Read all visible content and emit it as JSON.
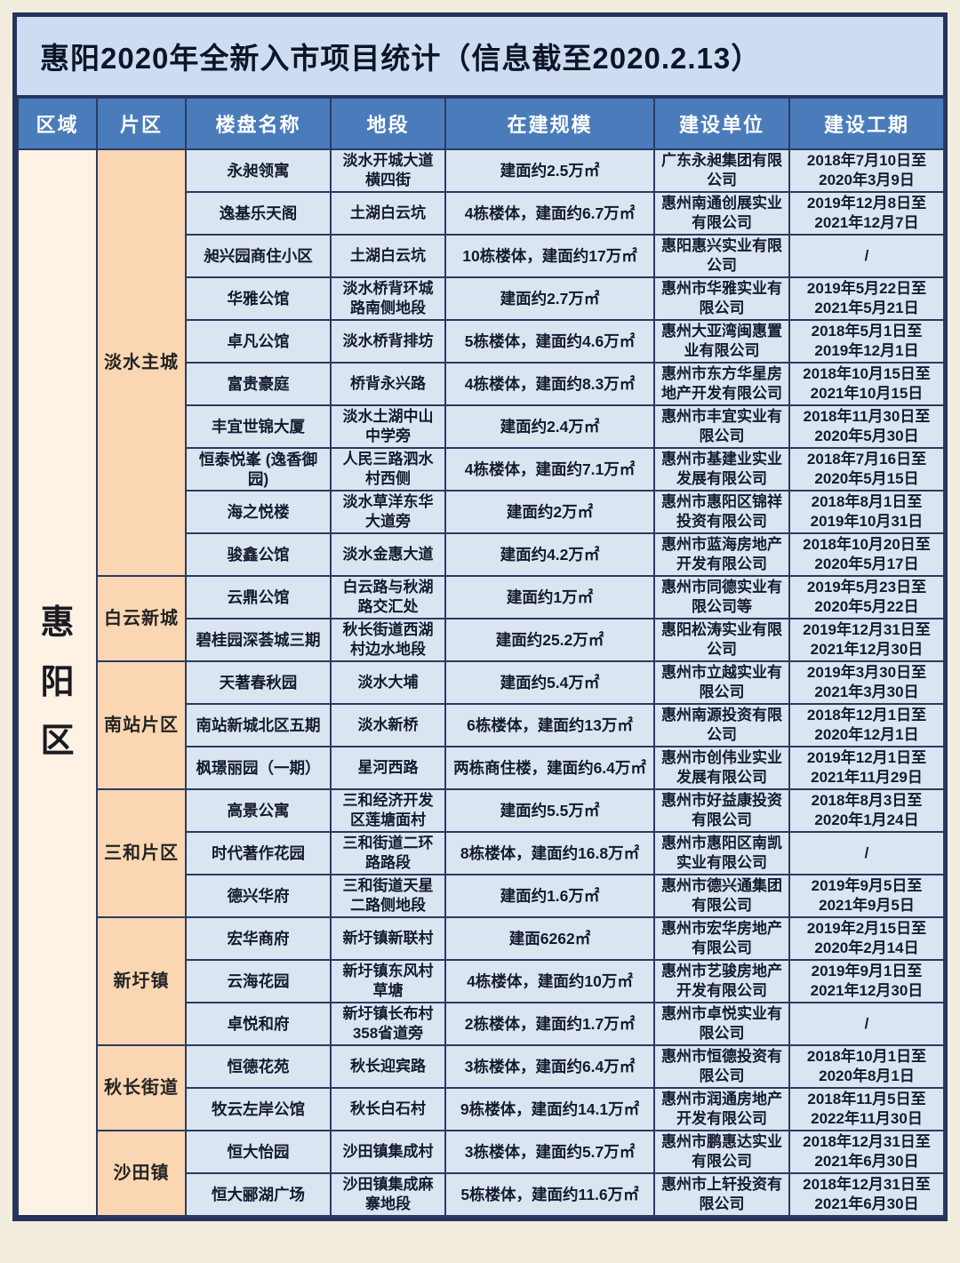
{
  "title": "惠阳2020年全新入市项目统计（信息截至2020.2.13）",
  "colors": {
    "page_background": "#f2eddc",
    "frame_border": "#25335f",
    "title_bar_background": "#cddcf0",
    "title_text": "#0d1528",
    "header_background": "#4a7cbb",
    "header_text": "#ffffff",
    "cell_background": "#dbe5f1",
    "region_column_background": "#fdf2e3",
    "district_column_background": "#fad7b2",
    "body_text": "#141a30"
  },
  "table": {
    "headers": [
      "区域",
      "片区",
      "楼盘名称",
      "地段",
      "在建规模",
      "建设单位",
      "建设工期"
    ],
    "region": "惠阳区",
    "groups": [
      {
        "name": "淡水主城",
        "rows": [
          {
            "name": "永昶领寓",
            "location": "淡水开城大道横四街",
            "scale": "建面约2.5万㎡",
            "company": "广东永昶集团有限公司",
            "period": "2018年7月10日至2020年3月9日"
          },
          {
            "name": "逸基乐天阁",
            "location": "土湖白云坑",
            "scale": "4栋楼体，建面约6.7万㎡",
            "company": "惠州南通创展实业有限公司",
            "period": "2019年12月8日至2021年12月7日"
          },
          {
            "name": "昶兴园商住小区",
            "location": "土湖白云坑",
            "scale": "10栋楼体，建面约17万㎡",
            "company": "惠阳惠兴实业有限公司",
            "period": "/"
          },
          {
            "name": "华雅公馆",
            "location": "淡水桥背环城路南侧地段",
            "scale": "建面约2.7万㎡",
            "company": "惠州市华雅实业有限公司",
            "period": "2019年5月22日至2021年5月21日"
          },
          {
            "name": "卓凡公馆",
            "location": "淡水桥背排坊",
            "scale": "5栋楼体，建面约4.6万㎡",
            "company": "惠州大亚湾闽惠置业有限公司",
            "period": "2018年5月1日至2019年12月1日"
          },
          {
            "name": "富贵豪庭",
            "location": "桥背永兴路",
            "scale": "4栋楼体，建面约8.3万㎡",
            "company": "惠州市东方华星房地产开发有限公司",
            "period": "2018年10月15日至2021年10月15日"
          },
          {
            "name": "丰宜世锦大厦",
            "location": "淡水土湖中山中学旁",
            "scale": "建面约2.4万㎡",
            "company": "惠州市丰宜实业有限公司",
            "period": "2018年11月30日至2020年5月30日"
          },
          {
            "name": "恒泰悦峯 (逸香御园)",
            "location": "人民三路泗水村西侧",
            "scale": "4栋楼体，建面约7.1万㎡",
            "company": "惠州市基建业实业发展有限公司",
            "period": "2018年7月16日至2020年5月15日"
          },
          {
            "name": "海之悦楼",
            "location": "淡水草洋东华大道旁",
            "scale": "建面约2万㎡",
            "company": "惠州市惠阳区锦祥投资有限公司",
            "period": "2018年8月1日至2019年10月31日"
          },
          {
            "name": "骏鑫公馆",
            "location": "淡水金惠大道",
            "scale": "建面约4.2万㎡",
            "company": "惠州市蓝海房地产开发有限公司",
            "period": "2018年10月20日至2020年5月17日"
          }
        ]
      },
      {
        "name": "白云新城",
        "rows": [
          {
            "name": "云鼎公馆",
            "location": "白云路与秋湖路交汇处",
            "scale": "建面约1万㎡",
            "company": "惠州市同德实业有限公司等",
            "period": "2019年5月23日至2020年5月22日"
          },
          {
            "name": "碧桂园深荟城三期",
            "location": "秋长街道西湖村边水地段",
            "scale": "建面约25.2万㎡",
            "company": "惠阳松涛实业有限公司",
            "period": "2019年12月31日至2021年12月30日"
          }
        ]
      },
      {
        "name": "南站片区",
        "rows": [
          {
            "name": "天著春秋园",
            "location": "淡水大埔",
            "scale": "建面约5.4万㎡",
            "company": "惠州市立越实业有限公司",
            "period": "2019年3月30日至2021年3月30日"
          },
          {
            "name": "南站新城北区五期",
            "location": "淡水新桥",
            "scale": "6栋楼体，建面约13万㎡",
            "company": "惠州南源投资有限公司",
            "period": "2018年12月1日至2020年12月1日"
          },
          {
            "name": "枫璟丽园（一期）",
            "location": "星河西路",
            "scale": "两栋商住楼，建面约6.4万㎡",
            "company": "惠州市创伟业实业发展有限公司",
            "period": "2019年12月1日至2021年11月29日"
          }
        ]
      },
      {
        "name": "三和片区",
        "rows": [
          {
            "name": "高景公寓",
            "location": "三和经济开发区莲塘面村",
            "scale": "建面约5.5万㎡",
            "company": "惠州市好益康投资有限公司",
            "period": "2018年8月3日至2020年1月24日"
          },
          {
            "name": "时代著作花园",
            "location": "三和街道二环路路段",
            "scale": "8栋楼体，建面约16.8万㎡",
            "company": "惠州市惠阳区南凯实业有限公司",
            "period": "/"
          },
          {
            "name": "德兴华府",
            "location": "三和街道天星二路侧地段",
            "scale": "建面约1.6万㎡",
            "company": "惠州市德兴通集团有限公司",
            "period": "2019年9月5日至2021年9月5日"
          }
        ]
      },
      {
        "name": "新圩镇",
        "rows": [
          {
            "name": "宏华商府",
            "location": "新圩镇新联村",
            "scale": "建面6262㎡",
            "company": "惠州市宏华房地产有限公司",
            "period": "2019年2月15日至2020年2月14日"
          },
          {
            "name": "云海花园",
            "location": "新圩镇东风村草塘",
            "scale": "4栋楼体，建面约10万㎡",
            "company": "惠州市艺骏房地产开发有限公司",
            "period": "2019年9月1日至2021年12月30日"
          },
          {
            "name": "卓悦和府",
            "location": "新圩镇长布村358省道旁",
            "scale": "2栋楼体，建面约1.7万㎡",
            "company": "惠州市卓悦实业有限公司",
            "period": "/"
          }
        ]
      },
      {
        "name": "秋长街道",
        "rows": [
          {
            "name": "恒德花苑",
            "location": "秋长迎宾路",
            "scale": "3栋楼体，建面约6.4万㎡",
            "company": "惠州市恒德投资有限公司",
            "period": "2018年10月1日至2020年8月1日"
          },
          {
            "name": "牧云左岸公馆",
            "location": "秋长白石村",
            "scale": "9栋楼体，建面约14.1万㎡",
            "company": "惠州市润通房地产开发有限公司",
            "period": "2018年11月5日至2022年11月30日"
          }
        ]
      },
      {
        "name": "沙田镇",
        "rows": [
          {
            "name": "恒大怡园",
            "location": "沙田镇集成村",
            "scale": "3栋楼体，建面约5.7万㎡",
            "company": "惠州市鹏惠达实业有限公司",
            "period": "2018年12月31日至2021年6月30日"
          },
          {
            "name": "恒大郦湖广场",
            "location": "沙田镇集成麻寨地段",
            "scale": "5栋楼体，建面约11.6万㎡",
            "company": "惠州市上轩投资有限公司",
            "period": "2018年12月31日至2021年6月30日"
          }
        ]
      }
    ]
  }
}
